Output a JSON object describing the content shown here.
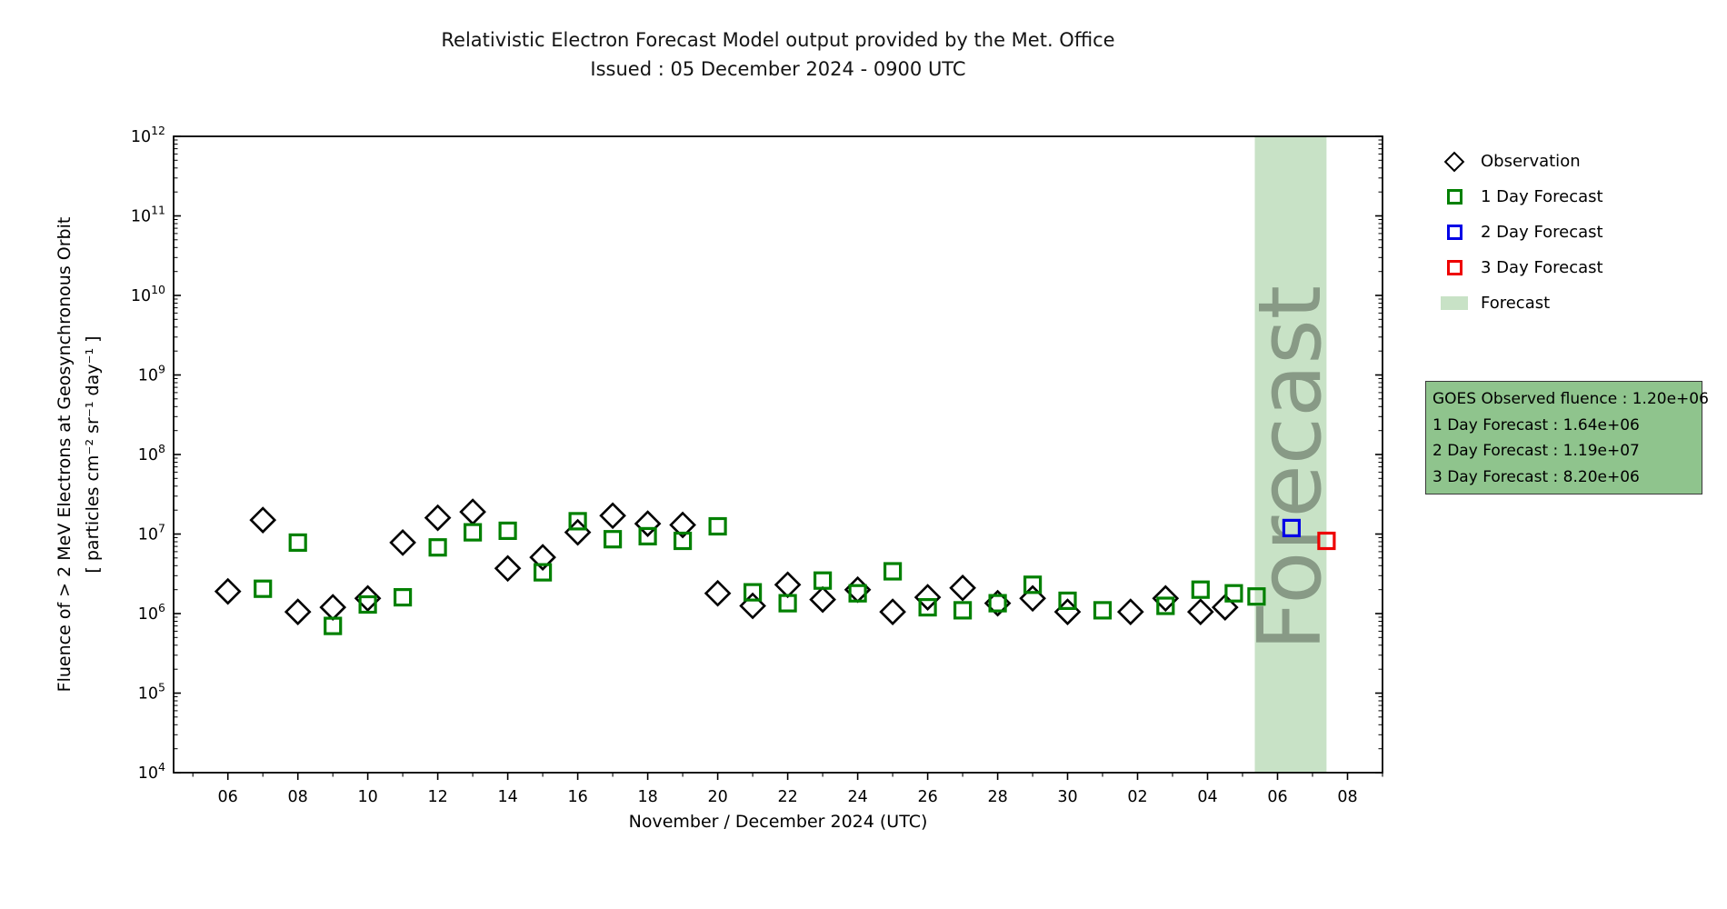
{
  "header": {
    "title": "Relativistic Electron Forecast Model output provided by the Met. Office",
    "subtitle": "Issued : 05 December 2024 - 0900 UTC"
  },
  "axes": {
    "y_label_line1": "Fluence of > 2 MeV Electrons at Geosynchronous Orbit",
    "y_label_line2": "[ particles cm⁻² sr⁻¹ day⁻¹ ]",
    "x_label": "November / December 2024 (UTC)"
  },
  "legend": {
    "items": [
      {
        "label": "Observation",
        "marker": "black-diamond"
      },
      {
        "label": "1 Day Forecast",
        "marker": "green-square"
      },
      {
        "label": "2 Day Forecast",
        "marker": "blue-square"
      },
      {
        "label": "3 Day Forecast",
        "marker": "red-square"
      },
      {
        "label": "Forecast",
        "marker": "green-patch"
      }
    ]
  },
  "info_box": {
    "lines": [
      "GOES Observed fluence : 1.20e+06",
      "1 Day Forecast : 1.64e+06",
      "2 Day Forecast : 1.19e+07",
      "3 Day Forecast : 8.20e+06"
    ]
  },
  "colors": {
    "band": "#c8e2c6",
    "band_text": "#7d8d7a",
    "info_box_bg": "#8fc48d",
    "observation": "#000000",
    "forecast_1day": "#008000",
    "forecast_2day": "#0000e6",
    "forecast_3day": "#ee0000"
  },
  "chart_data": {
    "type": "scatter",
    "title": "Relativistic Electron Forecast Model output provided by the Met. Office",
    "subtitle": "Issued : 05 December 2024 - 0900 UTC",
    "xlabel": "November / December 2024 (UTC)",
    "ylabel": "Fluence of > 2 MeV Electrons at Geosynchronous Orbit [ particles cm⁻² sr⁻¹ day⁻¹ ]",
    "note": "day units are continuous November days; day>30 means December (day-30)",
    "x_axis": {
      "domain_days": [
        4.45,
        39.0
      ],
      "major_ticks": [
        {
          "day": 6,
          "label": "06"
        },
        {
          "day": 8,
          "label": "08"
        },
        {
          "day": 10,
          "label": "10"
        },
        {
          "day": 12,
          "label": "12"
        },
        {
          "day": 14,
          "label": "14"
        },
        {
          "day": 16,
          "label": "16"
        },
        {
          "day": 18,
          "label": "18"
        },
        {
          "day": 20,
          "label": "20"
        },
        {
          "day": 22,
          "label": "22"
        },
        {
          "day": 24,
          "label": "24"
        },
        {
          "day": 26,
          "label": "26"
        },
        {
          "day": 28,
          "label": "28"
        },
        {
          "day": 30,
          "label": "30"
        },
        {
          "day": 32,
          "label": "02"
        },
        {
          "day": 34,
          "label": "04"
        },
        {
          "day": 36,
          "label": "06"
        },
        {
          "day": 38,
          "label": "08"
        }
      ]
    },
    "y_axis": {
      "scale": "log",
      "exponent_range": [
        4,
        12
      ],
      "tick_exponents": [
        4,
        5,
        6,
        7,
        8,
        9,
        10,
        11,
        12
      ]
    },
    "forecast_band": {
      "start_day": 35.35,
      "end_day": 37.4,
      "label": "Forecast"
    },
    "series": [
      {
        "name": "Observation",
        "marker": "diamond",
        "color": "#000000",
        "points": [
          {
            "day": 6,
            "value": 1900000.0
          },
          {
            "day": 7,
            "value": 15000000.0
          },
          {
            "day": 8,
            "value": 1050000.0
          },
          {
            "day": 9,
            "value": 1200000.0
          },
          {
            "day": 10,
            "value": 1550000.0
          },
          {
            "day": 11,
            "value": 7800000.0
          },
          {
            "day": 12,
            "value": 16000000.0
          },
          {
            "day": 13,
            "value": 19000000.0
          },
          {
            "day": 14,
            "value": 3700000.0
          },
          {
            "day": 15,
            "value": 5100000.0
          },
          {
            "day": 16,
            "value": 10500000.0
          },
          {
            "day": 17,
            "value": 17000000.0
          },
          {
            "day": 18,
            "value": 13500000.0
          },
          {
            "day": 19,
            "value": 13000000.0
          },
          {
            "day": 20,
            "value": 1800000.0
          },
          {
            "day": 21,
            "value": 1250000.0
          },
          {
            "day": 22,
            "value": 2300000.0
          },
          {
            "day": 23,
            "value": 1500000.0
          },
          {
            "day": 24,
            "value": 2000000.0
          },
          {
            "day": 25,
            "value": 1050000.0
          },
          {
            "day": 26,
            "value": 1600000.0
          },
          {
            "day": 27,
            "value": 2100000.0
          },
          {
            "day": 28,
            "value": 1350000.0
          },
          {
            "day": 29,
            "value": 1550000.0
          },
          {
            "day": 30,
            "value": 1050000.0
          },
          {
            "day": 31.8,
            "value": 1050000.0
          },
          {
            "day": 32.8,
            "value": 1550000.0
          },
          {
            "day": 33.8,
            "value": 1050000.0
          },
          {
            "day": 34.5,
            "value": 1200000.0
          }
        ]
      },
      {
        "name": "1 Day Forecast",
        "marker": "square",
        "color": "#008000",
        "points": [
          {
            "day": 7,
            "value": 2050000.0
          },
          {
            "day": 8,
            "value": 7800000.0
          },
          {
            "day": 9,
            "value": 700000.0
          },
          {
            "day": 10,
            "value": 1300000.0
          },
          {
            "day": 11,
            "value": 1600000.0
          },
          {
            "day": 12,
            "value": 6800000.0
          },
          {
            "day": 13,
            "value": 10500000.0
          },
          {
            "day": 14,
            "value": 11000000.0
          },
          {
            "day": 15,
            "value": 3300000.0
          },
          {
            "day": 16,
            "value": 14500000.0
          },
          {
            "day": 17,
            "value": 8600000.0
          },
          {
            "day": 18,
            "value": 9400000.0
          },
          {
            "day": 19,
            "value": 8200000.0
          },
          {
            "day": 20,
            "value": 12500000.0
          },
          {
            "day": 21,
            "value": 1850000.0
          },
          {
            "day": 22,
            "value": 1350000.0
          },
          {
            "day": 23,
            "value": 2600000.0
          },
          {
            "day": 24,
            "value": 1800000.0
          },
          {
            "day": 25,
            "value": 3400000.0
          },
          {
            "day": 26,
            "value": 1200000.0
          },
          {
            "day": 27,
            "value": 1100000.0
          },
          {
            "day": 28,
            "value": 1350000.0
          },
          {
            "day": 29,
            "value": 2300000.0
          },
          {
            "day": 30,
            "value": 1450000.0
          },
          {
            "day": 31,
            "value": 1100000.0
          },
          {
            "day": 32.8,
            "value": 1250000.0
          },
          {
            "day": 33.8,
            "value": 2000000.0
          },
          {
            "day": 34.75,
            "value": 1800000.0
          },
          {
            "day": 35.4,
            "value": 1640000.0
          }
        ]
      },
      {
        "name": "2 Day Forecast",
        "marker": "square",
        "color": "#0000e6",
        "points": [
          {
            "day": 36.4,
            "value": 11900000.0
          }
        ]
      },
      {
        "name": "3 Day Forecast",
        "marker": "square",
        "color": "#ee0000",
        "points": [
          {
            "day": 37.4,
            "value": 8200000.0
          }
        ]
      }
    ]
  }
}
